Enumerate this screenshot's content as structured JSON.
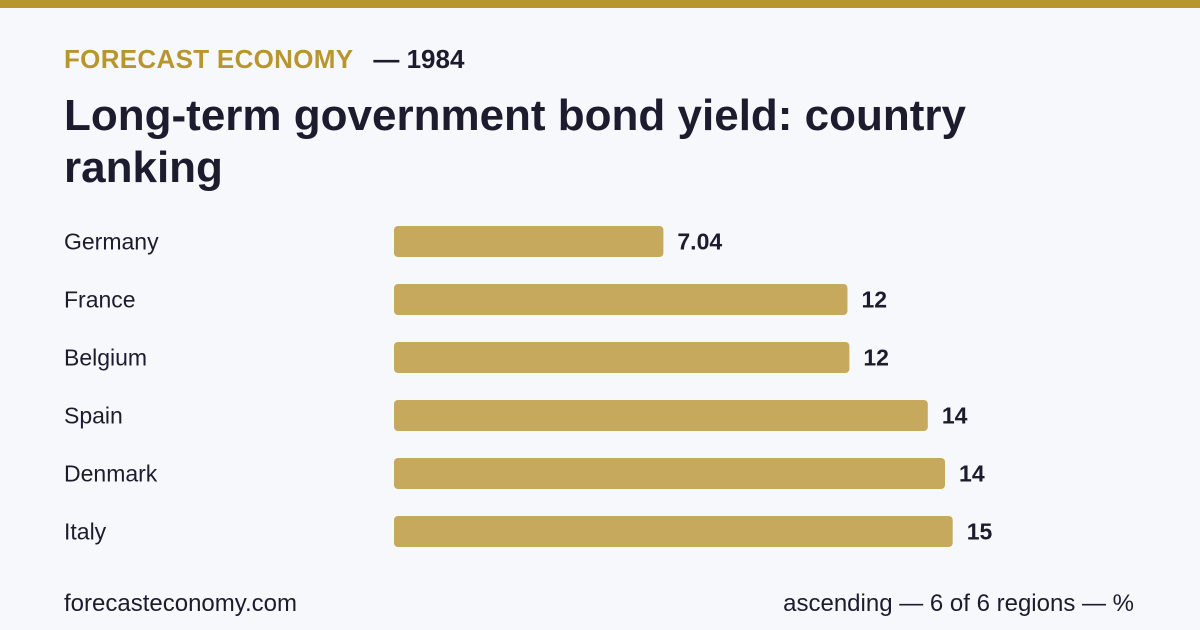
{
  "header": {
    "brand": "FORECAST ECONOMY",
    "year": "— 1984"
  },
  "footer": {
    "site": "forecasteconomy.com",
    "note": "ascending — 6 of 6 regions — %"
  },
  "colors": {
    "accent": "#b8962e",
    "bar": "#c6a95c",
    "text": "#1c1c2e",
    "background": "#f7f8fc"
  },
  "chart_data": {
    "type": "bar",
    "orientation": "horizontal",
    "title": "Long-term government bond yield: country ranking",
    "categories": [
      "Germany",
      "France",
      "Belgium",
      "Spain",
      "Denmark",
      "Italy"
    ],
    "values": [
      7.04,
      12,
      12,
      14,
      14,
      15
    ],
    "value_labels": [
      "7.04",
      "12",
      "12",
      "14",
      "14",
      "15"
    ],
    "plot_values": [
      7.04,
      11.85,
      11.9,
      13.95,
      14.4,
      14.6
    ],
    "xlim": [
      0,
      15
    ],
    "grid": false,
    "legend": "none"
  }
}
